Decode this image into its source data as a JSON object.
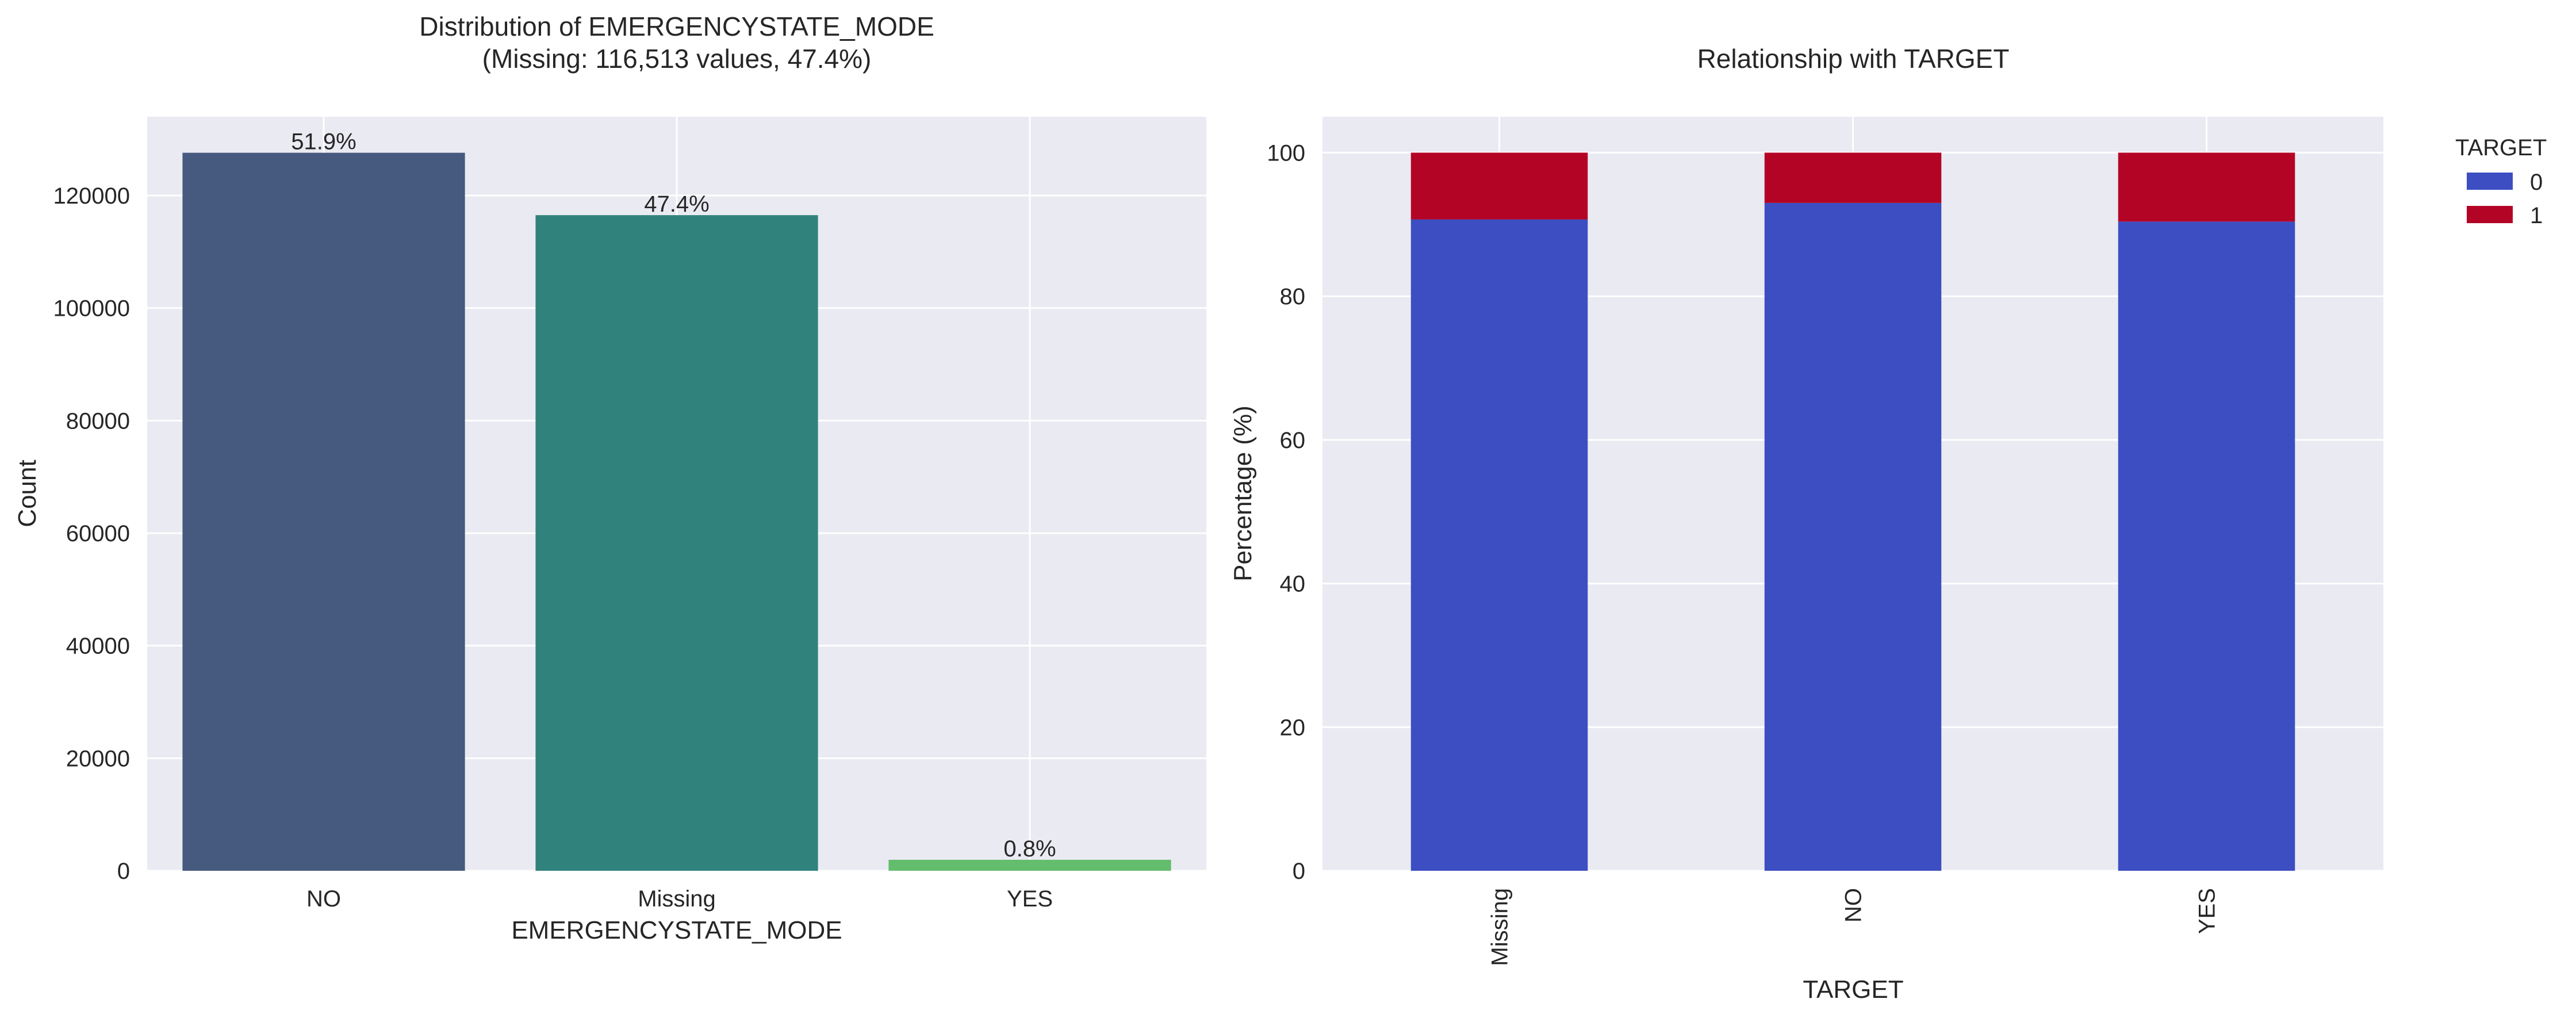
{
  "chart_data": [
    {
      "type": "bar",
      "title": "Distribution of EMERGENCYSTATE_MODE",
      "subtitle": "(Missing: 116,513 values, 47.4%)",
      "xlabel": "EMERGENCYSTATE_MODE",
      "ylabel": "Count",
      "categories": [
        "NO",
        "Missing",
        "YES"
      ],
      "values": [
        127600,
        116513,
        1950
      ],
      "data_labels": [
        "51.9%",
        "47.4%",
        "0.8%"
      ],
      "colors": [
        "#46597f",
        "#30837c",
        "#63bd6c"
      ],
      "ylim": [
        0,
        134000
      ],
      "yticks": [
        0,
        20000,
        40000,
        60000,
        80000,
        100000,
        120000
      ],
      "ytick_labels": [
        "0",
        "20000",
        "40000",
        "60000",
        "80000",
        "100000",
        "120000"
      ],
      "grid": true
    },
    {
      "type": "bar",
      "stacked": true,
      "title": "Relationship with TARGET",
      "xlabel": "TARGET",
      "ylabel": "Percentage (%)",
      "categories": [
        "Missing",
        "NO",
        "YES"
      ],
      "series": [
        {
          "name": "0",
          "values": [
            90.7,
            93.0,
            90.4
          ],
          "color": "#3c4ec2"
        },
        {
          "name": "1",
          "values": [
            9.3,
            7.0,
            9.6
          ],
          "color": "#b40426"
        }
      ],
      "ylim": [
        0,
        105
      ],
      "yticks": [
        0,
        20,
        40,
        60,
        80,
        100
      ],
      "ytick_labels": [
        "0",
        "20",
        "40",
        "60",
        "80",
        "100"
      ],
      "legend_title": "TARGET",
      "legend_position": "outside-top-right",
      "grid": true
    }
  ],
  "colors": {
    "plot_background": "#eaeaf2",
    "grid": "#ffffff",
    "text": "#262626"
  }
}
